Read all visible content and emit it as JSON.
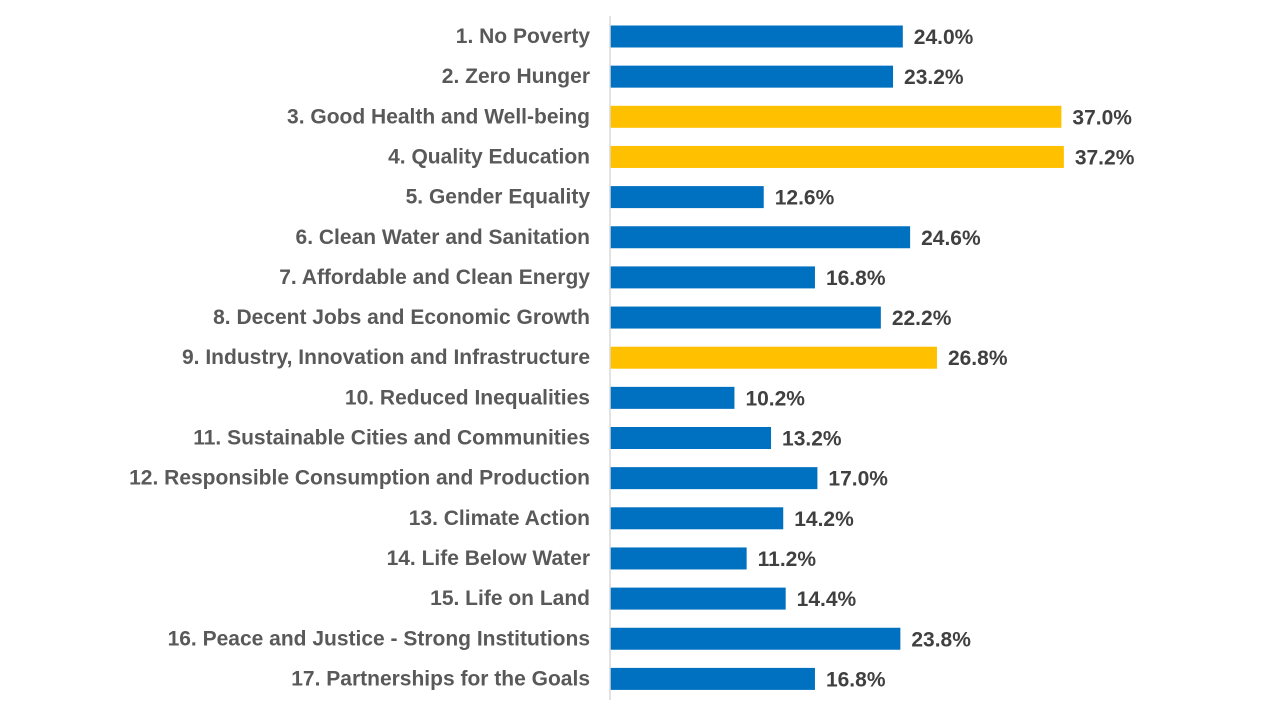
{
  "chart_data": {
    "type": "bar",
    "orientation": "horizontal",
    "title": "",
    "xlabel": "",
    "ylabel": "",
    "value_suffix": "%",
    "xlim": [
      0,
      40
    ],
    "grid": false,
    "legend": "none",
    "categories": [
      "1. No Poverty",
      "2. Zero Hunger",
      "3. Good Health and Well-being",
      "4. Quality Education",
      "5. Gender Equality",
      "6. Clean Water and Sanitation",
      "7. Affordable and Clean Energy",
      "8. Decent Jobs and Economic Growth",
      "9. Industry, Innovation and Infrastructure",
      "10. Reduced Inequalities",
      "11. Sustainable Cities and Communities",
      "12. Responsible Consumption and Production",
      "13. Climate Action",
      "14. Life Below Water",
      "15. Life on Land",
      "16. Peace and Justice - Strong Institutions",
      "17. Partnerships for the Goals"
    ],
    "values": [
      24.0,
      23.2,
      37.0,
      37.2,
      12.6,
      24.6,
      16.8,
      22.2,
      26.8,
      10.2,
      13.2,
      17.0,
      14.2,
      11.2,
      14.4,
      23.8,
      16.8
    ],
    "value_labels": [
      "24.0%",
      "23.2%",
      "37.0%",
      "37.2%",
      "12.6%",
      "24.6%",
      "16.8%",
      "22.2%",
      "26.8%",
      "10.2%",
      "13.2%",
      "17.0%",
      "14.2%",
      "11.2%",
      "14.4%",
      "23.8%",
      "16.8%"
    ],
    "highlighted": [
      false,
      false,
      true,
      true,
      false,
      false,
      false,
      false,
      true,
      false,
      false,
      false,
      false,
      false,
      false,
      false,
      false
    ],
    "colors": {
      "default": "#0070C0",
      "highlight": "#FFC000",
      "axis": "#D9D9D9"
    }
  }
}
